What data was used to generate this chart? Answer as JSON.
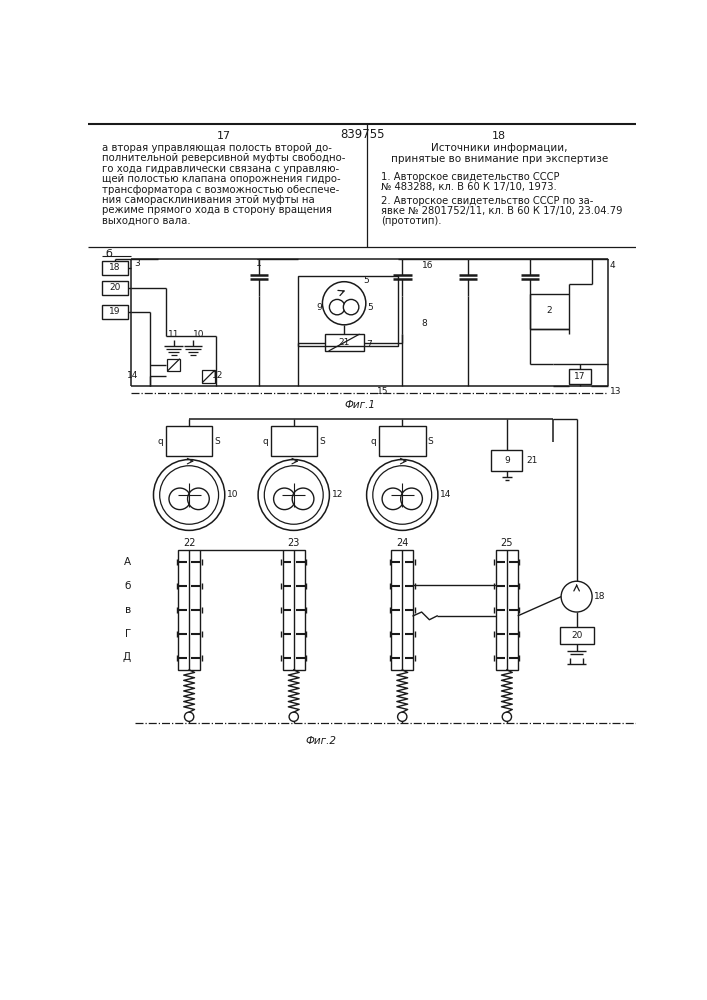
{
  "page_width": 7.07,
  "page_height": 10.0,
  "bg_color": "#ffffff",
  "line_color": "#1a1a1a",
  "title_number": "839755",
  "page_left": "17",
  "page_right": "18",
  "fig1_label": "Фиг.1",
  "fig2_label": "Фиг.2",
  "left_text_lines": [
    "а вторая управляющая полость второй до-",
    "полнительной реверсивной муфты свободно-",
    "го хода гидравлически связана с управляю-",
    "щей полостью клапана опорожнения гидро-",
    "трансформатора с возможностью обеспече-",
    "ния саморасклинивания этой муфты на",
    "режиме прямого хода в сторону вращения",
    "выходного вала."
  ],
  "right_header1": "Источники информации,",
  "right_header2": "принятые во внимание при экспертизе",
  "right_ref1a": "1. Авторское свидетельство СССР",
  "right_ref1b": "№ 483288, кл. В 60 К 17/10, 1973.",
  "right_ref2a": "2. Авторское свидетельство СССР по за-",
  "right_ref2b": "явке № 2801752/11, кл. В 60 К 17/10, 23.04.79",
  "right_ref2c": "(прототип).",
  "label_b": "б",
  "row_labels": [
    "А",
    "б",
    "в",
    "Г",
    "Д"
  ]
}
